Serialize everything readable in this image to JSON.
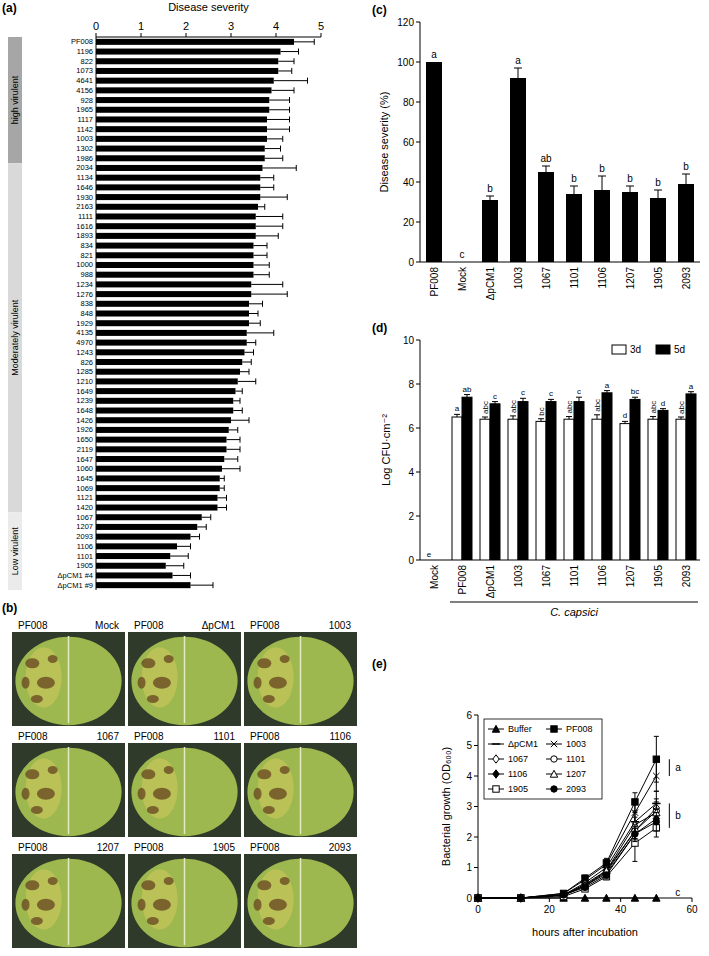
{
  "chart_data": [
    {
      "panel_label": "(a)",
      "type": "bar",
      "orientation": "horizontal",
      "x_label": "Disease severity",
      "xlim": [
        0,
        5
      ],
      "xticks": [
        0,
        1,
        2,
        3,
        4,
        5
      ],
      "color": "#000000",
      "categories": [
        "PF008",
        "1196",
        "822",
        "1073",
        "4641",
        "4156",
        "928",
        "1965",
        "1117",
        "1142",
        "1003",
        "1302",
        "1986",
        "2034",
        "1134",
        "1646",
        "1930",
        "2163",
        "1111",
        "1616",
        "1893",
        "834",
        "821",
        "1000",
        "988",
        "1234",
        "1276",
        "838",
        "848",
        "1929",
        "4135",
        "4970",
        "1243",
        "826",
        "1285",
        "1210",
        "1649",
        "1239",
        "1648",
        "1426",
        "1926",
        "1650",
        "2119",
        "1647",
        "1060",
        "1645",
        "1069",
        "1121",
        "1420",
        "1067",
        "1207",
        "2093",
        "1106",
        "1101",
        "1905",
        "ΔpCM1 #4",
        "ΔpCM1 #9"
      ],
      "values": [
        4.4,
        4.1,
        4.05,
        4.05,
        3.95,
        3.9,
        3.85,
        3.85,
        3.8,
        3.8,
        3.8,
        3.75,
        3.75,
        3.7,
        3.65,
        3.65,
        3.65,
        3.6,
        3.55,
        3.55,
        3.55,
        3.5,
        3.5,
        3.5,
        3.5,
        3.45,
        3.45,
        3.4,
        3.4,
        3.4,
        3.35,
        3.35,
        3.3,
        3.25,
        3.2,
        3.15,
        3.1,
        3.05,
        3.05,
        3.0,
        2.95,
        2.9,
        2.9,
        2.85,
        2.8,
        2.75,
        2.75,
        2.7,
        2.7,
        2.35,
        2.25,
        2.1,
        1.8,
        1.65,
        1.55,
        1.7,
        2.1
      ],
      "errors": [
        0.45,
        0.4,
        0.35,
        0.3,
        0.75,
        0.5,
        0.45,
        0.45,
        0.5,
        0.5,
        0.35,
        0.35,
        0.4,
        0.75,
        0.3,
        0.3,
        0.6,
        0.15,
        0.6,
        0.6,
        0.5,
        0.3,
        0.3,
        0.35,
        0.35,
        0.7,
        0.8,
        0.3,
        0.2,
        0.25,
        0.6,
        0.2,
        0.2,
        0.2,
        0.2,
        0.4,
        0.15,
        0.15,
        0.2,
        0.4,
        0.2,
        0.3,
        0.3,
        0.3,
        0.4,
        0.1,
        0.1,
        0.2,
        0.2,
        0.2,
        0.2,
        0.2,
        0.3,
        0.4,
        0.4,
        0.4,
        0.5
      ],
      "groups": [
        {
          "label": "high virulent",
          "first": 0,
          "last": 12,
          "color": "#a6a6a6"
        },
        {
          "label": "Moderately virulent",
          "first": 13,
          "last": 48,
          "color": "#d9d9d9"
        },
        {
          "label": "Low virulent",
          "first": 49,
          "last": 56,
          "color": "#ebebeb"
        }
      ]
    },
    {
      "panel_label": "(c)",
      "type": "bar",
      "y_label": "Disease severity (%)",
      "ylim": [
        0,
        120
      ],
      "yticks": [
        0,
        20,
        40,
        60,
        80,
        100,
        120
      ],
      "color": "#000000",
      "categories": [
        "PF008",
        "Mock",
        "ΔpCM1",
        "1003",
        "1067",
        "1101",
        "1106",
        "1207",
        "1905",
        "2093"
      ],
      "values": [
        100,
        0,
        31,
        92,
        45,
        34,
        36,
        35,
        32,
        39
      ],
      "errors": [
        0,
        0,
        2,
        5,
        3,
        4,
        7,
        3,
        4,
        5
      ],
      "letters": [
        "a",
        "c",
        "b",
        "a",
        "ab",
        "b",
        "b",
        "b",
        "b",
        "b"
      ]
    },
    {
      "panel_label": "(d)",
      "type": "bar",
      "y_label": "Log CFU·cm⁻²",
      "legend": "top-right",
      "ylim": [
        0,
        10
      ],
      "yticks": [
        0,
        2,
        4,
        6,
        8,
        10
      ],
      "categories": [
        "Mock",
        "PF008",
        "ΔpCM1",
        "1003",
        "1067",
        "1101",
        "1106",
        "1207",
        "1905",
        "2093"
      ],
      "x_group": {
        "label": "C. capsici",
        "first": 1,
        "last": 9
      },
      "series": [
        {
          "name": "3d",
          "color": "#ffffff",
          "values": [
            0,
            6.5,
            6.4,
            6.4,
            6.3,
            6.4,
            6.4,
            6.2,
            6.4,
            6.4
          ],
          "errors": [
            0,
            0.12,
            0.1,
            0.15,
            0.12,
            0.12,
            0.2,
            0.1,
            0.12,
            0.1
          ],
          "letters": [
            "e",
            "a",
            "abc",
            "abc",
            "bc",
            "abc",
            "abc",
            "d",
            "abc",
            "abc"
          ]
        },
        {
          "name": "5d",
          "color": "#000000",
          "values": [
            0,
            7.4,
            7.1,
            7.2,
            7.2,
            7.2,
            7.6,
            7.3,
            6.8,
            7.55
          ],
          "errors": [
            0,
            0.12,
            0.1,
            0.15,
            0.1,
            0.2,
            0.1,
            0.1,
            0.08,
            0.1
          ],
          "letters": [
            null,
            "ab",
            "c",
            "c",
            "c",
            "c",
            "a",
            "bc",
            "d",
            "a"
          ]
        }
      ]
    },
    {
      "panel_label": "(e)",
      "type": "line",
      "x_label": "hours after incubation",
      "y_label": "Bacterial growth (OD₆₀₀)",
      "legend": "top-left",
      "x": [
        0,
        12,
        24,
        30,
        36,
        44,
        50
      ],
      "xlim": [
        0,
        60
      ],
      "xticks": [
        0,
        20,
        40,
        60
      ],
      "ylim": [
        0,
        6
      ],
      "yticks": [
        0,
        1,
        2,
        3,
        4,
        5,
        6
      ],
      "series": [
        {
          "name": "Buffer",
          "color": "#000000",
          "marker": "triangle-filled",
          "values": [
            0,
            0,
            0,
            0,
            0,
            0,
            0
          ],
          "errors": [
            0,
            0,
            0,
            0,
            0,
            0,
            0
          ]
        },
        {
          "name": "PF008",
          "color": "#000000",
          "marker": "square-filled",
          "values": [
            0,
            0,
            0.15,
            0.65,
            1.15,
            3.15,
            4.55
          ],
          "errors": [
            0,
            0,
            0.05,
            0.1,
            0.15,
            0.3,
            0.75
          ]
        },
        {
          "name": "ΔpCM1",
          "color": "#000000",
          "marker": "dash",
          "values": [
            0,
            0,
            0.1,
            0.5,
            1.0,
            2.5,
            3.1
          ],
          "errors": [
            0,
            0,
            0.05,
            0.1,
            0.1,
            0.3,
            0.4
          ]
        },
        {
          "name": "1003",
          "color": "#000000",
          "marker": "x",
          "values": [
            0,
            0,
            0.15,
            0.6,
            1.1,
            2.8,
            4.0
          ],
          "errors": [
            0,
            0,
            0.05,
            0.1,
            0.15,
            0.3,
            0.5
          ]
        },
        {
          "name": "1067",
          "color": "#000000",
          "marker": "diamond-open",
          "values": [
            0,
            0,
            0.1,
            0.45,
            0.9,
            2.2,
            2.95
          ],
          "errors": [
            0,
            0,
            0.03,
            0.08,
            0.1,
            0.25,
            0.3
          ]
        },
        {
          "name": "1101",
          "color": "#000000",
          "marker": "circle-open",
          "values": [
            0,
            0,
            0.1,
            0.4,
            0.85,
            2.2,
            2.85
          ],
          "errors": [
            0,
            0,
            0.03,
            0.08,
            0.1,
            0.25,
            0.3
          ]
        },
        {
          "name": "1106",
          "color": "#000000",
          "marker": "diamond-filled",
          "values": [
            0,
            0,
            0.1,
            0.4,
            0.8,
            2.1,
            2.6
          ],
          "errors": [
            0,
            0,
            0.03,
            0.08,
            0.1,
            0.25,
            0.3
          ]
        },
        {
          "name": "1207",
          "color": "#000000",
          "marker": "triangle-open",
          "values": [
            0,
            0,
            0.1,
            0.4,
            0.9,
            2.4,
            2.8
          ],
          "errors": [
            0,
            0,
            0.03,
            0.08,
            0.1,
            0.25,
            0.3
          ]
        },
        {
          "name": "1905",
          "color": "#000000",
          "marker": "square-open",
          "values": [
            0,
            0,
            0.05,
            0.3,
            0.7,
            1.8,
            2.3
          ],
          "errors": [
            0,
            0,
            0.03,
            0.08,
            0.1,
            0.6,
            0.3
          ]
        },
        {
          "name": "2093",
          "color": "#000000",
          "marker": "circle-filled",
          "values": [
            0,
            0,
            0.1,
            0.35,
            0.75,
            2.1,
            2.5
          ],
          "errors": [
            0,
            0,
            0.03,
            0.08,
            0.1,
            0.25,
            0.3
          ]
        }
      ],
      "groups": [
        {
          "label": "a",
          "series": [
            1,
            3
          ]
        },
        {
          "label": "b",
          "series": [
            2,
            4,
            5,
            6,
            7,
            8,
            9
          ]
        },
        {
          "label": "c",
          "series": [
            0
          ]
        }
      ]
    }
  ],
  "photo_panel": {
    "panel_label": "(b)",
    "images": [
      {
        "left": "PF008",
        "right": "Mock"
      },
      {
        "left": "PF008",
        "right": "ΔpCM1"
      },
      {
        "left": "PF008",
        "right": "1003"
      },
      {
        "left": "PF008",
        "right": "1067"
      },
      {
        "left": "PF008",
        "right": "1101"
      },
      {
        "left": "PF008",
        "right": "1106"
      },
      {
        "left": "PF008",
        "right": "1207"
      },
      {
        "left": "PF008",
        "right": "1905"
      },
      {
        "left": "PF008",
        "right": "2093"
      }
    ]
  }
}
